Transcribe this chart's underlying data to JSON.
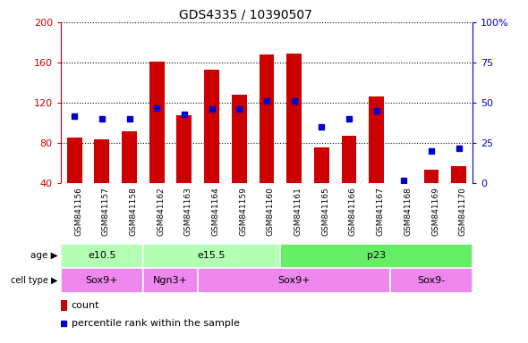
{
  "title": "GDS4335 / 10390507",
  "samples": [
    "GSM841156",
    "GSM841157",
    "GSM841158",
    "GSM841162",
    "GSM841163",
    "GSM841164",
    "GSM841159",
    "GSM841160",
    "GSM841161",
    "GSM841165",
    "GSM841166",
    "GSM841167",
    "GSM841168",
    "GSM841169",
    "GSM841170"
  ],
  "count": [
    86,
    84,
    92,
    161,
    108,
    153,
    128,
    168,
    169,
    76,
    87,
    126,
    37,
    54,
    57
  ],
  "percentile": [
    42,
    40,
    40,
    47,
    43,
    46,
    46,
    51,
    51,
    35,
    40,
    45,
    2,
    20,
    22
  ],
  "ylim_left": [
    40,
    200
  ],
  "ylim_right": [
    0,
    100
  ],
  "yticks_left": [
    40,
    80,
    120,
    160,
    200
  ],
  "yticks_right": [
    0,
    25,
    50,
    75,
    100
  ],
  "age_groups": [
    {
      "label": "e10.5",
      "start": 0,
      "end": 3,
      "color": "#b3ffb3"
    },
    {
      "label": "e15.5",
      "start": 3,
      "end": 8,
      "color": "#b3ffb3"
    },
    {
      "label": "p23",
      "start": 8,
      "end": 15,
      "color": "#66ee66"
    }
  ],
  "cell_type_groups": [
    {
      "label": "Sox9+",
      "start": 0,
      "end": 3,
      "color": "#ee88ee"
    },
    {
      "label": "Ngn3+",
      "start": 3,
      "end": 5,
      "color": "#ee88ee"
    },
    {
      "label": "Sox9+",
      "start": 5,
      "end": 12,
      "color": "#ee88ee"
    },
    {
      "label": "Sox9-",
      "start": 12,
      "end": 15,
      "color": "#ee88ee"
    }
  ],
  "bar_color": "#cc0000",
  "dot_color": "#0000cc",
  "left_axis_color": "#cc0000",
  "right_axis_color": "#0000cc",
  "tick_bg_color": "#cccccc",
  "plot_bg": "#ffffff"
}
